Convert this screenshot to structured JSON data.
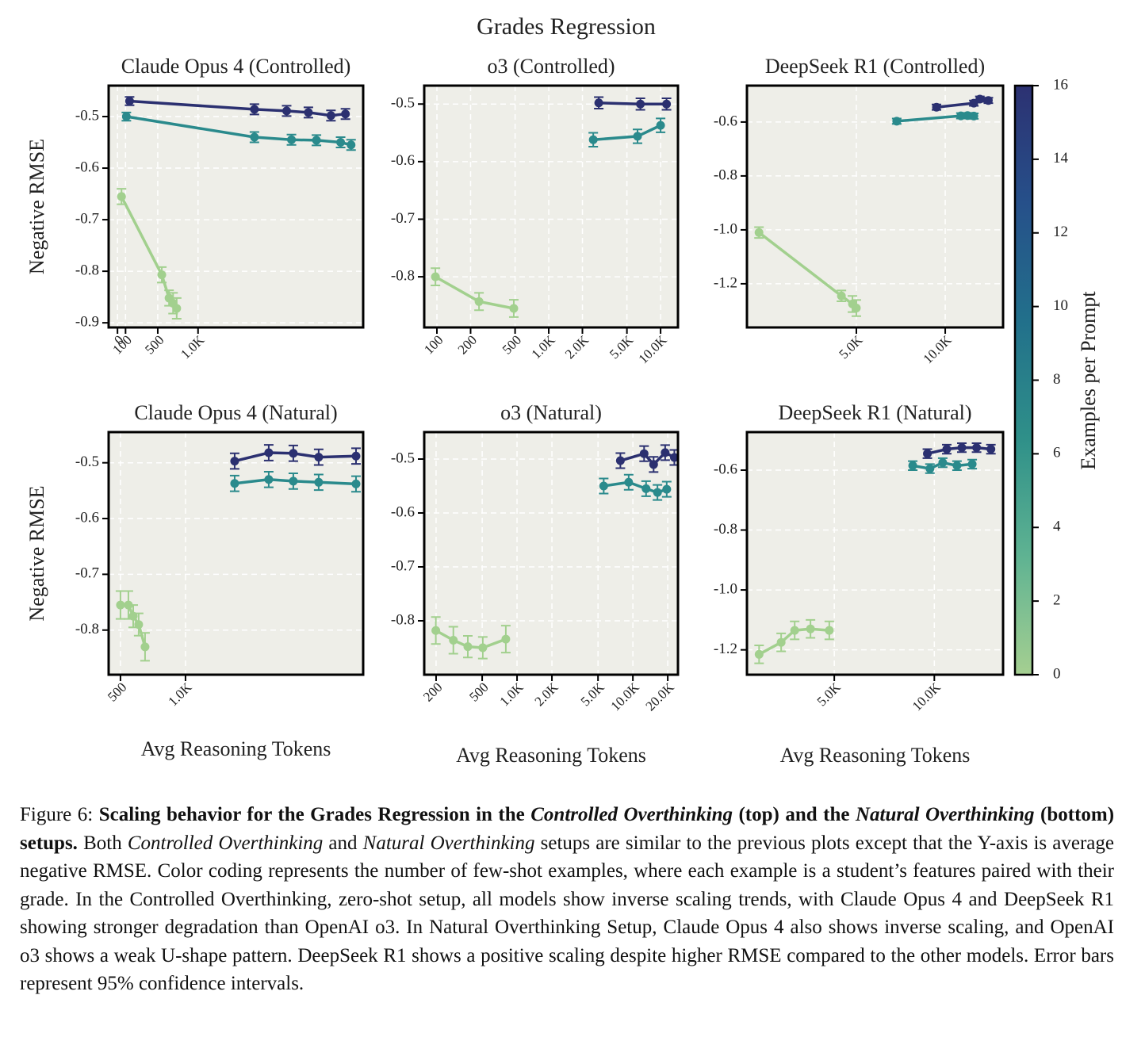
{
  "title": "Grades Regression",
  "colorbar": {
    "label": "Examples per Prompt",
    "lim": [
      0,
      16
    ],
    "ticks": [
      0,
      2,
      4,
      6,
      8,
      10,
      12,
      14,
      16
    ],
    "colormap": [
      "#a5cf91",
      "#5fb392",
      "#2f9089",
      "#22708b",
      "#26508a",
      "#2c3172"
    ]
  },
  "chart_data": [
    {
      "type": "line",
      "title": "Claude Opus 4 (Controlled)",
      "ylabel": "Negative RMSE",
      "xscale": "linear",
      "grid": true,
      "xlim": [
        -110,
        3050
      ],
      "xticks": [
        0,
        100,
        500,
        {
          "value": 1000,
          "label": "1.0K"
        }
      ],
      "ylim": [
        -0.909,
        -0.44
      ],
      "yticks": [
        -0.5,
        -0.6,
        -0.7,
        -0.8,
        -0.9
      ],
      "series": [
        {
          "color": "#a2d08e",
          "x": [
            50,
            550,
            640,
            690,
            735
          ],
          "values": [
            -0.655,
            -0.807,
            -0.852,
            -0.862,
            -0.872
          ],
          "errors": [
            0.015,
            0.015,
            0.015,
            0.02,
            0.02
          ]
        },
        {
          "color": "#2a8a8c",
          "x": [
            110,
            1700,
            2160,
            2470,
            2770,
            2900
          ],
          "values": [
            -0.5,
            -0.54,
            -0.545,
            -0.546,
            -0.55,
            -0.555
          ],
          "errors": [
            0.008,
            0.01,
            0.01,
            0.01,
            0.01,
            0.01
          ]
        },
        {
          "color": "#2b3070",
          "x": [
            150,
            1700,
            2100,
            2370,
            2650,
            2830
          ],
          "values": [
            -0.47,
            -0.486,
            -0.489,
            -0.492,
            -0.498,
            -0.495
          ],
          "errors": [
            0.008,
            0.01,
            0.01,
            0.01,
            0.01,
            0.01
          ]
        }
      ]
    },
    {
      "type": "line",
      "title": "o3 (Controlled)",
      "xscale": "log",
      "grid": true,
      "xlim": [
        77,
        14300
      ],
      "xticks": [
        100,
        200,
        500,
        {
          "value": 1000,
          "label": "1.0K"
        },
        {
          "value": 2000,
          "label": "2.0K"
        },
        {
          "value": 5000,
          "label": "5.0K"
        },
        {
          "value": 10000,
          "label": "10.0K"
        }
      ],
      "ylim": [
        -0.888,
        -0.468
      ],
      "yticks": [
        -0.5,
        -0.6,
        -0.7,
        -0.8
      ],
      "series": [
        {
          "color": "#a2d08e",
          "x": [
            97,
            238,
            487
          ],
          "values": [
            -0.8,
            -0.843,
            -0.855
          ],
          "errors": [
            0.015,
            0.015,
            0.015
          ]
        },
        {
          "color": "#2a8a8c",
          "x": [
            2500,
            6220,
            10000
          ],
          "values": [
            -0.562,
            -0.556,
            -0.537
          ],
          "errors": [
            0.012,
            0.012,
            0.012
          ]
        },
        {
          "color": "#2b3070",
          "x": [
            2800,
            6600,
            11300
          ],
          "values": [
            -0.498,
            -0.5,
            -0.5
          ],
          "errors": [
            0.01,
            0.01,
            0.01
          ]
        }
      ]
    },
    {
      "type": "line",
      "title": "DeepSeek R1 (Controlled)",
      "xscale": "log",
      "grid": true,
      "xlim": [
        2130,
        15700
      ],
      "xticks": [
        {
          "value": 5000,
          "label": "5.0K"
        },
        {
          "value": 10000,
          "label": "10.0K"
        }
      ],
      "ylim": [
        -1.362,
        -0.465
      ],
      "yticks": [
        -0.6,
        -0.8,
        {
          "value": -1,
          "label": "-1.0"
        },
        -1.2
      ],
      "series": [
        {
          "color": "#a2d08e",
          "x": [
            2340,
            4450,
            4850,
            5000
          ],
          "values": [
            -1.01,
            -1.245,
            -1.275,
            -1.29
          ],
          "errors": [
            0.02,
            0.02,
            0.03,
            0.03
          ]
        },
        {
          "color": "#2a8a8c",
          "x": [
            6850,
            11300,
            11900,
            12500
          ],
          "values": [
            -0.597,
            -0.577,
            -0.576,
            -0.578
          ],
          "errors": [
            0.01,
            0.01,
            0.01,
            0.01
          ]
        },
        {
          "color": "#2b3070",
          "x": [
            9340,
            12500,
            13100,
            14000
          ],
          "values": [
            -0.545,
            -0.53,
            -0.515,
            -0.52
          ],
          "errors": [
            0.01,
            0.01,
            0.01,
            0.01
          ]
        }
      ]
    },
    {
      "type": "line",
      "title": "Claude Opus 4 (Natural)",
      "ylabel": "Negative RMSE",
      "xlabel": "Avg Reasoning Tokens",
      "xscale": "linear",
      "grid": true,
      "xlim": [
        409,
        2366
      ],
      "xticks": [
        500,
        {
          "value": 1000,
          "label": "1.0K"
        }
      ],
      "ylim": [
        -0.88,
        -0.445
      ],
      "yticks": [
        -0.5,
        -0.6,
        -0.7,
        -0.8
      ],
      "series": [
        {
          "color": "#a2d08e",
          "x": [
            500,
            561,
            598,
            640,
            689
          ],
          "values": [
            -0.755,
            -0.755,
            -0.775,
            -0.79,
            -0.83
          ],
          "errors": [
            0.025,
            0.025,
            0.02,
            0.02,
            0.025
          ]
        },
        {
          "color": "#2a8a8c",
          "x": [
            1378,
            1640,
            1829,
            2024,
            2311
          ],
          "values": [
            -0.537,
            -0.53,
            -0.533,
            -0.535,
            -0.538
          ],
          "errors": [
            0.014,
            0.014,
            0.014,
            0.014,
            0.014
          ]
        },
        {
          "color": "#2b3070",
          "x": [
            1378,
            1640,
            1829,
            2024,
            2311
          ],
          "values": [
            -0.497,
            -0.482,
            -0.483,
            -0.49,
            -0.488
          ],
          "errors": [
            0.014,
            0.014,
            0.014,
            0.014,
            0.014
          ]
        }
      ]
    },
    {
      "type": "line",
      "title": "o3 (Natural)",
      "xlabel": "Avg Reasoning Tokens",
      "xscale": "log",
      "grid": true,
      "xlim": [
        158,
        24500
      ],
      "xticks": [
        200,
        500,
        {
          "value": 1000,
          "label": "1.0K"
        },
        {
          "value": 2000,
          "label": "2.0K"
        },
        {
          "value": 5000,
          "label": "5.0K"
        },
        {
          "value": 10000,
          "label": "10.0K"
        },
        {
          "value": 20000,
          "label": "20.0K"
        }
      ],
      "ylim": [
        -0.9,
        -0.45
      ],
      "yticks": [
        -0.5,
        -0.6,
        -0.7,
        -0.8
      ],
      "series": [
        {
          "color": "#a2d08e",
          "x": [
            199,
            282,
            376,
            506,
            800
          ],
          "values": [
            -0.818,
            -0.836,
            -0.848,
            -0.85,
            -0.834
          ],
          "errors": [
            0.025,
            0.025,
            0.02,
            0.02,
            0.025
          ]
        },
        {
          "color": "#2a8a8c",
          "x": [
            5600,
            9200,
            13000,
            16300,
            19600
          ],
          "values": [
            -0.55,
            -0.543,
            -0.555,
            -0.562,
            -0.556
          ],
          "errors": [
            0.014,
            0.014,
            0.014,
            0.014,
            0.014
          ]
        },
        {
          "color": "#2b3070",
          "x": [
            7800,
            12500,
            15100,
            19000,
            22800
          ],
          "values": [
            -0.503,
            -0.49,
            -0.51,
            -0.488,
            -0.497
          ],
          "errors": [
            0.014,
            0.014,
            0.014,
            0.014,
            0.014
          ]
        }
      ]
    },
    {
      "type": "line",
      "title": "DeepSeek R1 (Natural)",
      "xlabel": "Avg Reasoning Tokens",
      "xscale": "log",
      "grid": true,
      "xlim": [
        2730,
        16100
      ],
      "xticks": [
        {
          "value": 5000,
          "label": "5.0K"
        },
        {
          "value": 10000,
          "label": "10.0K"
        }
      ],
      "ylim": [
        -1.283,
        -0.473
      ],
      "yticks": [
        -0.6,
        -0.8,
        {
          "value": -1,
          "label": "-1.0"
        },
        -1.2
      ],
      "series": [
        {
          "color": "#a2d08e",
          "x": [
            2970,
            3460,
            3800,
            4240,
            4830
          ],
          "values": [
            -1.215,
            -1.175,
            -1.135,
            -1.13,
            -1.135
          ],
          "errors": [
            0.03,
            0.03,
            0.03,
            0.03,
            0.03
          ]
        },
        {
          "color": "#2a8a8c",
          "x": [
            8610,
            9700,
            10600,
            11700,
            13000
          ],
          "values": [
            -0.585,
            -0.595,
            -0.575,
            -0.585,
            -0.58
          ],
          "errors": [
            0.015,
            0.015,
            0.015,
            0.015,
            0.015
          ]
        },
        {
          "color": "#2b3070",
          "x": [
            9530,
            10900,
            12100,
            13400,
            14800
          ],
          "values": [
            -0.545,
            -0.53,
            -0.525,
            -0.525,
            -0.53
          ],
          "errors": [
            0.015,
            0.015,
            0.015,
            0.015,
            0.015
          ]
        }
      ]
    }
  ],
  "caption": [
    {
      "text": "Figure 6: ",
      "style": "normal"
    },
    {
      "text": "Scaling behavior for the Grades Regression in the ",
      "style": "bold"
    },
    {
      "text": "Controlled Overthinking",
      "style": "bold-italic"
    },
    {
      "text": " (top) and the ",
      "style": "bold"
    },
    {
      "text": "Natural Overthinking",
      "style": "bold-italic"
    },
    {
      "text": " (bottom) setups.",
      "style": "bold"
    },
    {
      "text": " Both ",
      "style": "normal"
    },
    {
      "text": "Controlled Overthinking",
      "style": "italic"
    },
    {
      "text": " and ",
      "style": "normal"
    },
    {
      "text": "Natural Overthinking",
      "style": "italic"
    },
    {
      "text": " setups are similar to the previous plots except that the Y-axis is average negative RMSE. Color coding represents the number of few-shot examples, where each example is a student’s features paired with their grade. In the Controlled Overthinking, zero-shot setup, all models show inverse scaling trends, with Claude Opus 4 and DeepSeek R1 showing stronger degradation than OpenAI o3. In Natural Overthinking Setup, Claude Opus 4 also shows inverse scaling, and OpenAI o3 shows a weak U-shape pattern. DeepSeek R1 shows a positive scaling despite higher RMSE compared to the other models. Error bars represent 95% confidence intervals.",
      "style": "normal"
    }
  ]
}
